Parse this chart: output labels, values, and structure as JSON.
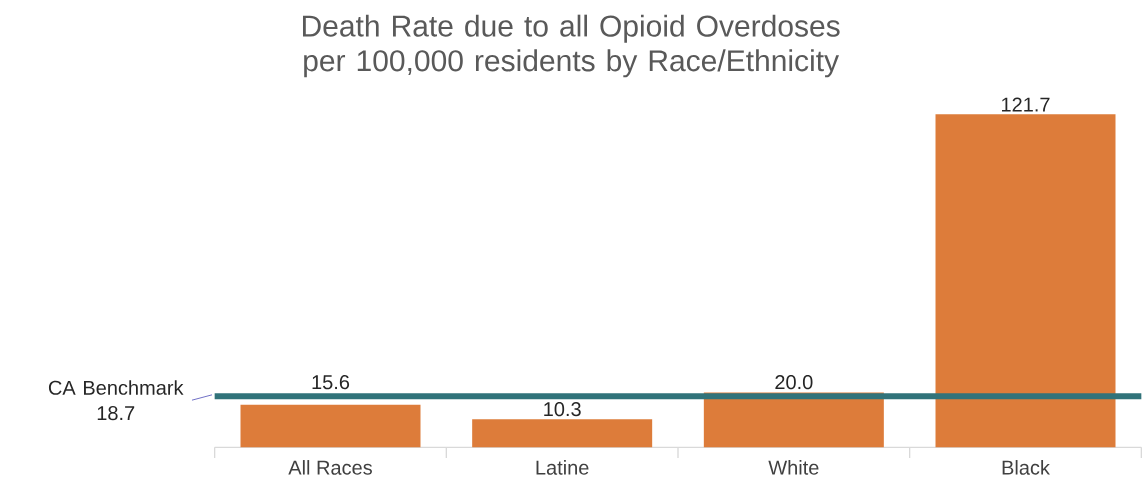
{
  "chart_data": {
    "type": "bar",
    "title": "Death Rate due to all Opioid Overdoses per 100,000 residents by Race/Ethnicity",
    "categories": [
      "All Races",
      "Latine",
      "White",
      "Black"
    ],
    "values": [
      15.6,
      10.3,
      20.0,
      121.7
    ],
    "color": "#dd7c3a",
    "data_labels": true,
    "value_labels": [
      "15.6",
      "10.3",
      "20.0",
      "121.7"
    ],
    "ref_lines": [
      {
        "axis": "y",
        "value": 18.7,
        "label": "CA Benchmark 18.7",
        "color": "#31737a"
      }
    ]
  }
}
